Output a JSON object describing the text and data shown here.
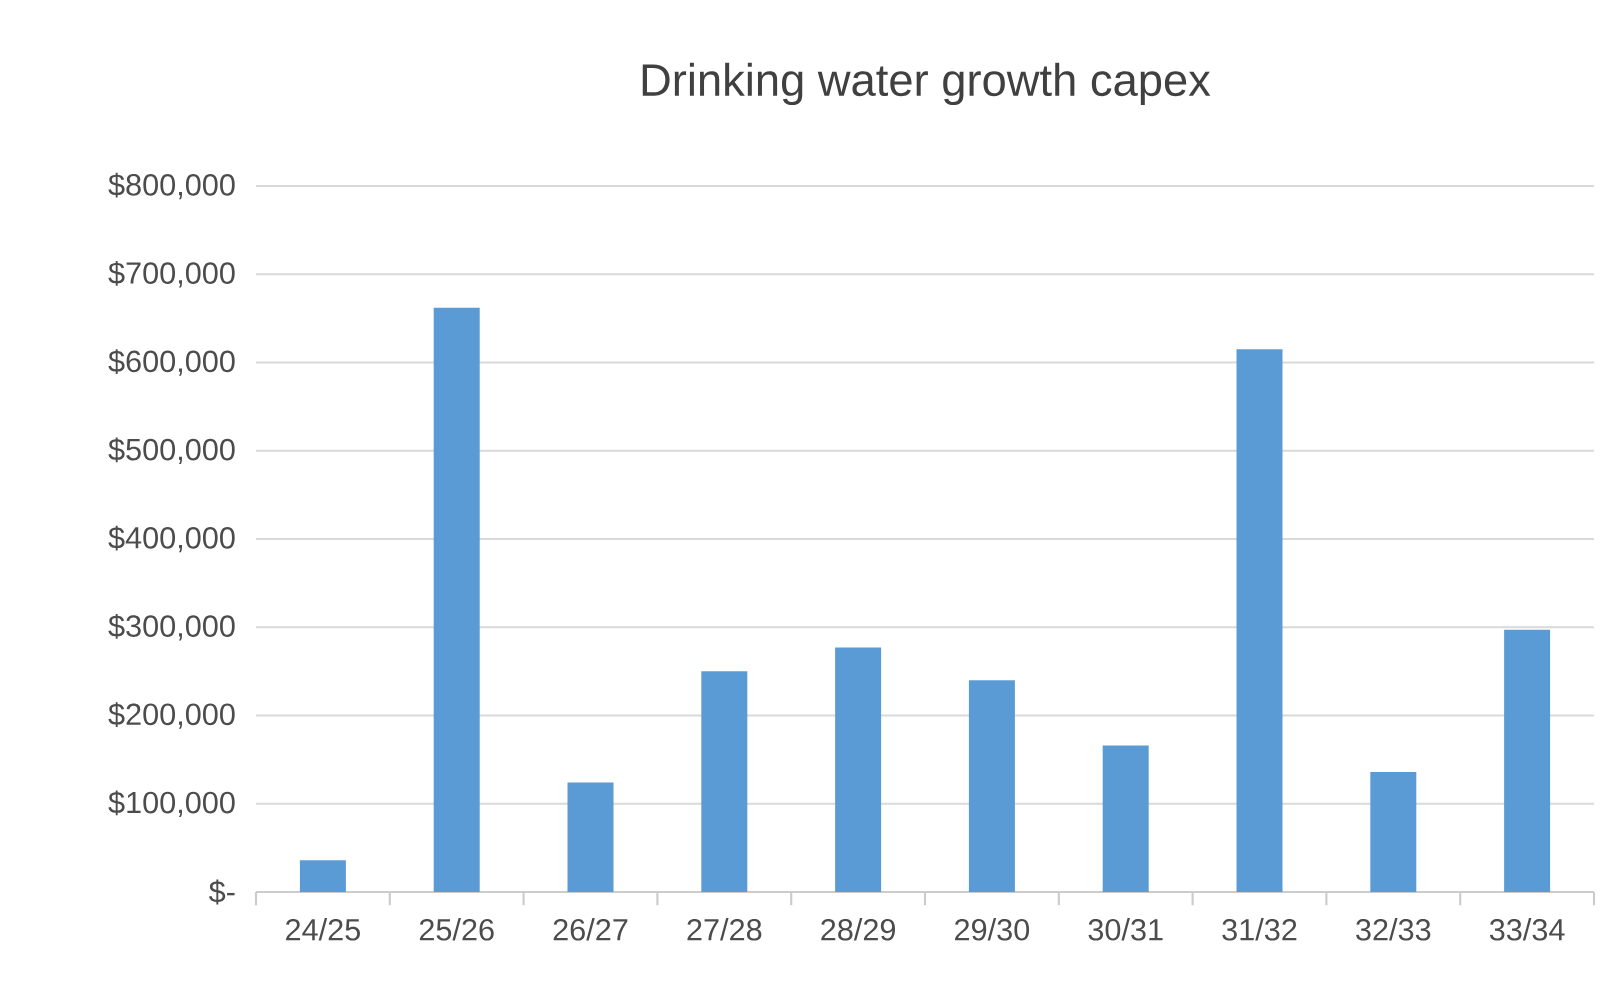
{
  "chart_data": {
    "type": "bar",
    "title": "Drinking water growth capex",
    "categories": [
      "24/25",
      "25/26",
      "26/27",
      "27/28",
      "28/29",
      "29/30",
      "30/31",
      "31/32",
      "32/33",
      "33/34"
    ],
    "values": [
      36000,
      662000,
      124000,
      250000,
      277000,
      240000,
      166000,
      615000,
      136000,
      297000
    ],
    "color": "#5b9bd5",
    "ylim": [
      0,
      800000
    ],
    "yticks": [
      {
        "value": 0,
        "label": "$-"
      },
      {
        "value": 100000,
        "label": "$100,000"
      },
      {
        "value": 200000,
        "label": "$200,000"
      },
      {
        "value": 300000,
        "label": "$300,000"
      },
      {
        "value": 400000,
        "label": "$400,000"
      },
      {
        "value": 500000,
        "label": "$500,000"
      },
      {
        "value": 600000,
        "label": "$600,000"
      },
      {
        "value": 700000,
        "label": "$700,000"
      },
      {
        "value": 800000,
        "label": "$800,000"
      }
    ],
    "grid": "y"
  }
}
